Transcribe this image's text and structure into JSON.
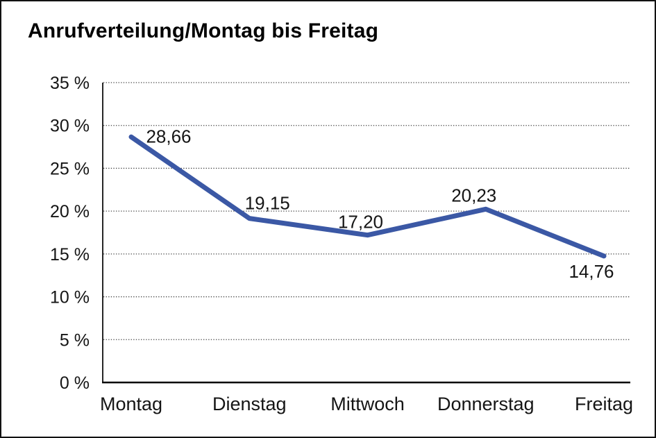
{
  "header": {
    "title": "Anrufverteilung/Montag bis Freitag"
  },
  "colors": {
    "line": "#3b58a5",
    "grid_dots": "#404040",
    "axis": "#000000",
    "text": "#151515",
    "page_border": "#111111",
    "background": "#ffffff"
  },
  "chart_data": {
    "type": "line",
    "title": "Anrufverteilung/Montag bis Freitag",
    "categories": [
      "Montag",
      "Dienstag",
      "Mittwoch",
      "Donnerstag",
      "Freitag"
    ],
    "series": [
      {
        "name": "Anrufverteilung",
        "values": [
          28.66,
          19.15,
          17.2,
          20.23,
          14.76
        ]
      }
    ],
    "data_labels": [
      "28,66",
      "19,15",
      "17,20",
      "20,23",
      "14,76"
    ],
    "xlabel": "",
    "ylabel": "",
    "ylim": [
      0,
      35
    ],
    "ytick_interval": 5,
    "ytick_labels": [
      "0 %",
      "5 %",
      "10 %",
      "15 %",
      "20 %",
      "25 %",
      "30 %",
      "35 %"
    ],
    "grid": "horizontal-dotted",
    "legend": "none",
    "markers": "none",
    "decimal_separator": ","
  }
}
